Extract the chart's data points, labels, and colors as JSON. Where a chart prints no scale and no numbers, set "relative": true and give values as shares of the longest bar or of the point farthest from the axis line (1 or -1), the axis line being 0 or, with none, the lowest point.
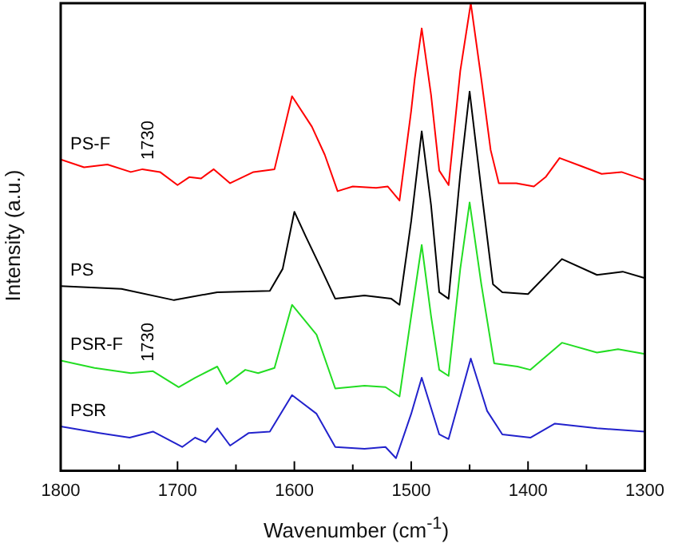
{
  "chart_data": {
    "type": "line",
    "relative": true,
    "xlabel": "Wavenumber (cm$^{-1}$)",
    "ylabel": "Intensity (a.u.)",
    "xlim": [
      1800,
      1300
    ],
    "xticks": [
      1800,
      {
        "value": 1750,
        "label": null
      },
      1700,
      {
        "value": 1650,
        "label": null
      },
      1600,
      {
        "value": 1550,
        "label": null
      },
      1500,
      {
        "value": 1450,
        "label": null
      },
      1400,
      {
        "value": 1350,
        "label": null
      },
      1300
    ],
    "grid": false,
    "legend": false,
    "marker": "none",
    "line_style": "solid",
    "annotations": [
      {
        "text": "1730",
        "x": 1730,
        "y": 0.645
      },
      {
        "text": "1730",
        "x": 1730,
        "y": 0.213
      }
    ],
    "series": [
      {
        "name": "PS-F",
        "color": "#ff0000",
        "x": [
          1800,
          1780,
          1760,
          1740,
          1730,
          1715,
          1700,
          1690,
          1680,
          1669,
          1655,
          1635,
          1617,
          1602,
          1585,
          1574,
          1563,
          1550,
          1530,
          1520,
          1510,
          1500,
          1497,
          1491,
          1483,
          1476,
          1468,
          1458,
          1449,
          1440,
          1432,
          1425,
          1410,
          1395,
          1385,
          1373,
          1355,
          1337,
          1320,
          1300
        ],
        "values": [
          0.666,
          0.649,
          0.655,
          0.639,
          0.645,
          0.639,
          0.611,
          0.628,
          0.625,
          0.645,
          0.615,
          0.639,
          0.645,
          0.801,
          0.736,
          0.676,
          0.598,
          0.608,
          0.605,
          0.608,
          0.578,
          0.77,
          0.838,
          0.946,
          0.804,
          0.642,
          0.611,
          0.855,
          1.0,
          0.838,
          0.686,
          0.615,
          0.615,
          0.608,
          0.628,
          0.669,
          0.652,
          0.635,
          0.639,
          0.622
        ]
      },
      {
        "name": "PS",
        "color": "#000000",
        "x": [
          1800,
          1748,
          1703,
          1666,
          1621,
          1610,
          1600,
          1590,
          1577,
          1565,
          1540,
          1517,
          1510,
          1500,
          1491,
          1483,
          1476,
          1468,
          1458,
          1450,
          1440,
          1430,
          1422,
          1400,
          1371,
          1341,
          1319,
          1300
        ],
        "values": [
          0.395,
          0.389,
          0.365,
          0.382,
          0.385,
          0.432,
          0.554,
          0.5,
          0.432,
          0.368,
          0.375,
          0.368,
          0.355,
          0.534,
          0.726,
          0.568,
          0.382,
          0.368,
          0.635,
          0.811,
          0.601,
          0.399,
          0.382,
          0.378,
          0.453,
          0.419,
          0.426,
          0.412
        ]
      },
      {
        "name": "PSR-F",
        "color": "#22dd22",
        "x": [
          1800,
          1771,
          1740,
          1721,
          1699,
          1685,
          1666,
          1658,
          1642,
          1631,
          1617,
          1602,
          1581,
          1565,
          1540,
          1522,
          1510,
          1500,
          1491,
          1483,
          1476,
          1468,
          1458,
          1450,
          1440,
          1429,
          1409,
          1398,
          1371,
          1341,
          1323,
          1300
        ],
        "values": [
          0.236,
          0.22,
          0.209,
          0.213,
          0.179,
          0.199,
          0.223,
          0.186,
          0.216,
          0.209,
          0.22,
          0.355,
          0.291,
          0.176,
          0.182,
          0.179,
          0.159,
          0.331,
          0.483,
          0.331,
          0.216,
          0.203,
          0.432,
          0.574,
          0.399,
          0.23,
          0.223,
          0.216,
          0.274,
          0.253,
          0.26,
          0.25
        ]
      },
      {
        "name": "PSR",
        "color": "#2222cc",
        "x": [
          1800,
          1767,
          1741,
          1721,
          1696,
          1685,
          1676,
          1666,
          1655,
          1639,
          1621,
          1602,
          1581,
          1565,
          1540,
          1522,
          1513,
          1500,
          1491,
          1476,
          1468,
          1449,
          1435,
          1422,
          1398,
          1377,
          1341,
          1300
        ],
        "values": [
          0.095,
          0.081,
          0.071,
          0.084,
          0.051,
          0.071,
          0.061,
          0.091,
          0.054,
          0.081,
          0.084,
          0.162,
          0.122,
          0.051,
          0.047,
          0.051,
          0.027,
          0.122,
          0.199,
          0.078,
          0.068,
          0.24,
          0.128,
          0.078,
          0.071,
          0.101,
          0.091,
          0.084
        ]
      }
    ]
  }
}
